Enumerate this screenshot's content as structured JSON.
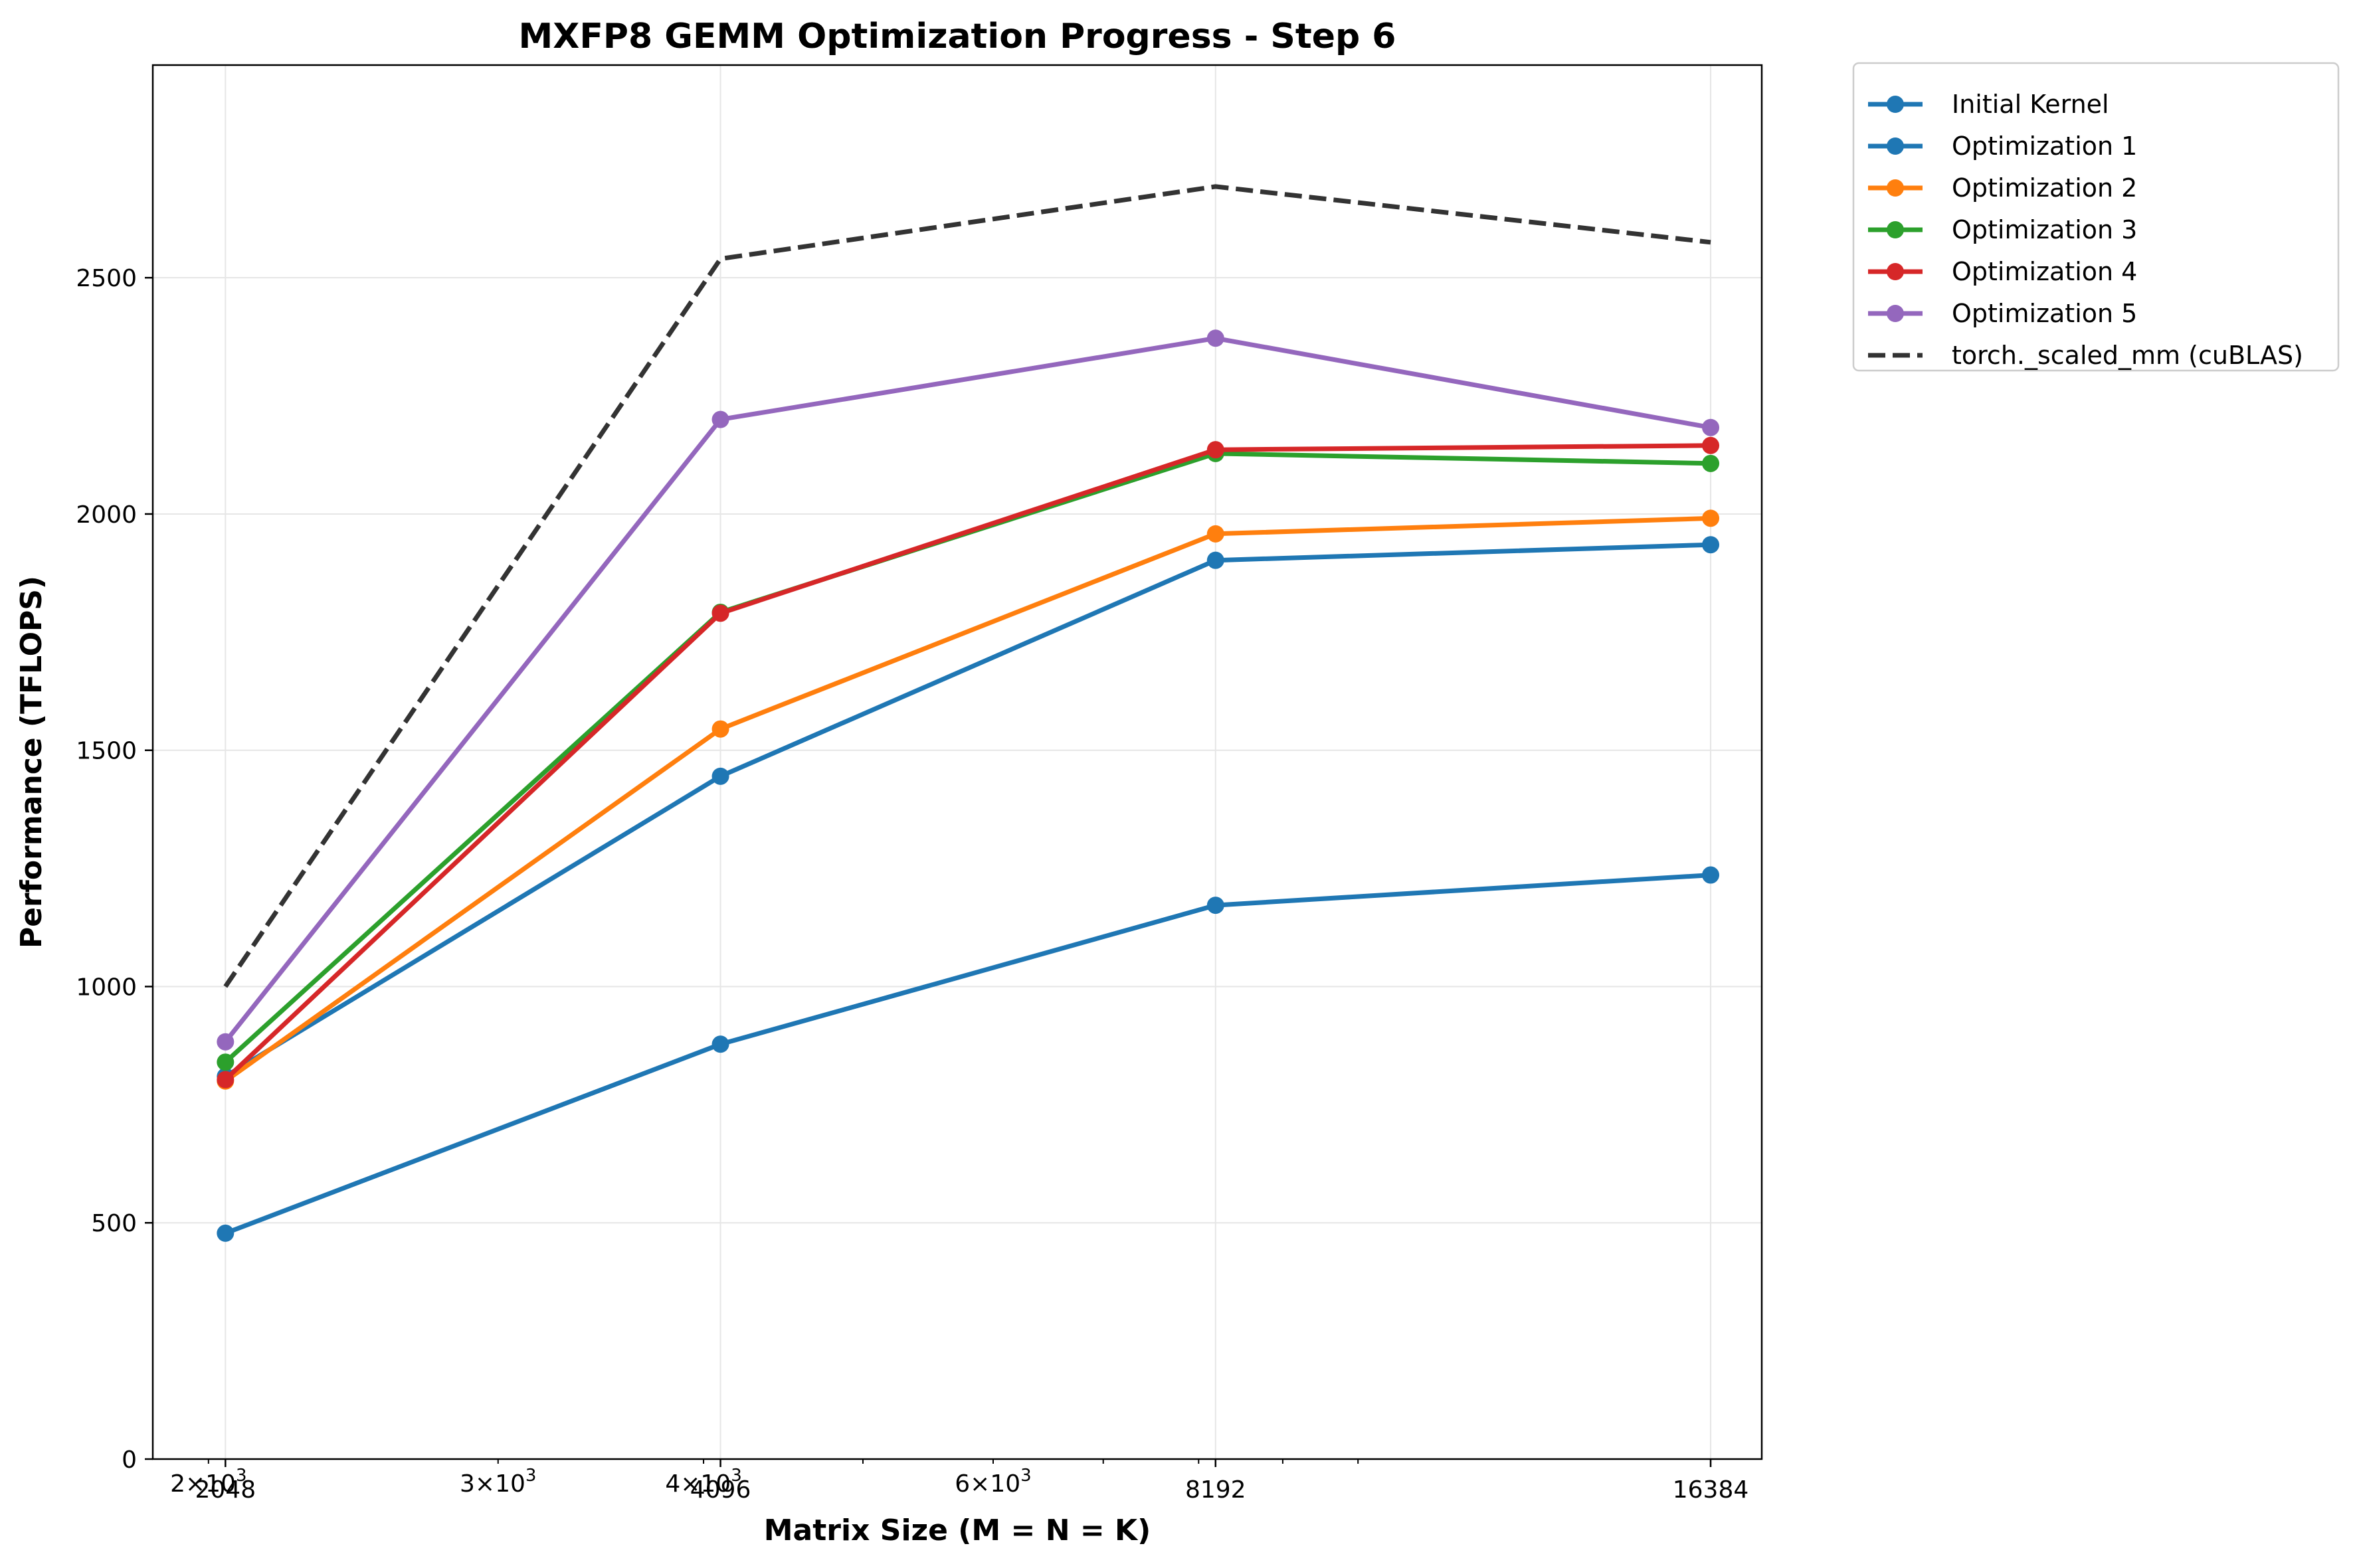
{
  "chart_data": {
    "type": "line",
    "title": "MXFP8 GEMM Optimization Progress - Step 6",
    "xlabel": "Matrix Size (M = N = K)",
    "ylabel": "Performance (TFLOPS)",
    "xscale": "log",
    "x": [
      2048,
      4096,
      8192,
      16384
    ],
    "x_tick_labels": [
      "2048",
      "4096",
      "8192",
      "16384"
    ],
    "x_minor_tick_labels": [
      {
        "value": 2000,
        "base": "2",
        "exp": "3"
      },
      {
        "value": 3000,
        "base": "3",
        "exp": "3"
      },
      {
        "value": 4000,
        "base": "4",
        "exp": "3"
      },
      {
        "value": 6000,
        "base": "6",
        "exp": "3"
      }
    ],
    "xlim": [
      1850,
      17600
    ],
    "ylim": [
      0,
      2950
    ],
    "y_ticks": [
      0,
      500,
      1000,
      1500,
      2000,
      2500
    ],
    "grid": true,
    "legend_position": "outside-upper-right",
    "series": [
      {
        "name": "Initial Kernel",
        "color": "#1f77b4",
        "style": "solid",
        "marker": "circle",
        "values": [
          478,
          878,
          1172,
          1236
        ]
      },
      {
        "name": "Optimization 1",
        "color": "#1f77b4",
        "style": "solid",
        "marker": "circle",
        "values": [
          810,
          1445,
          1902,
          1935
        ]
      },
      {
        "name": "Optimization 2",
        "color": "#ff7f0e",
        "style": "solid",
        "marker": "circle",
        "values": [
          800,
          1545,
          1958,
          1991
        ]
      },
      {
        "name": "Optimization 3",
        "color": "#2ca02c",
        "style": "solid",
        "marker": "circle",
        "values": [
          840,
          1792,
          2128,
          2107
        ]
      },
      {
        "name": "Optimization 4",
        "color": "#d62728",
        "style": "solid",
        "marker": "circle",
        "values": [
          803,
          1790,
          2136,
          2145
        ]
      },
      {
        "name": "Optimization 5",
        "color": "#9467bd",
        "style": "solid",
        "marker": "circle",
        "values": [
          883,
          2200,
          2372,
          2183
        ]
      },
      {
        "name": "torch._scaled_mm (cuBLAS)",
        "color": "#333333",
        "style": "dashed",
        "marker": "none",
        "values": [
          1000,
          2540,
          2693,
          2575
        ]
      }
    ]
  }
}
